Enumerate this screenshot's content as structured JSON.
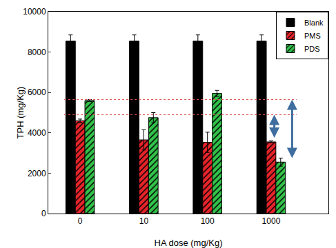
{
  "chart_data": {
    "type": "bar",
    "x_label": "HA dose (mg/Kg)",
    "y_label": "TPH (mg/Kg)",
    "categories": [
      "0",
      "10",
      "100",
      "1000"
    ],
    "series": [
      {
        "name": "Blank",
        "color": "#000000",
        "values": [
          8550,
          8550,
          8550,
          8550
        ],
        "errors": [
          300,
          300,
          300,
          300
        ]
      },
      {
        "name": "PMS",
        "color": "#e8242a",
        "values": [
          4600,
          3650,
          3530,
          3550
        ],
        "errors": [
          80,
          500,
          500,
          50
        ]
      },
      {
        "name": "PDS",
        "color": "#33c24a",
        "values": [
          5600,
          4750,
          5950,
          2550
        ],
        "errors": [
          50,
          250,
          150,
          200
        ]
      }
    ],
    "reference_lines": [
      5650,
      4900
    ],
    "ylim": [
      0,
      10000
    ],
    "yticks": [
      0,
      2000,
      4000,
      6000,
      8000,
      10000
    ],
    "grid": false,
    "legend": "upper right"
  }
}
